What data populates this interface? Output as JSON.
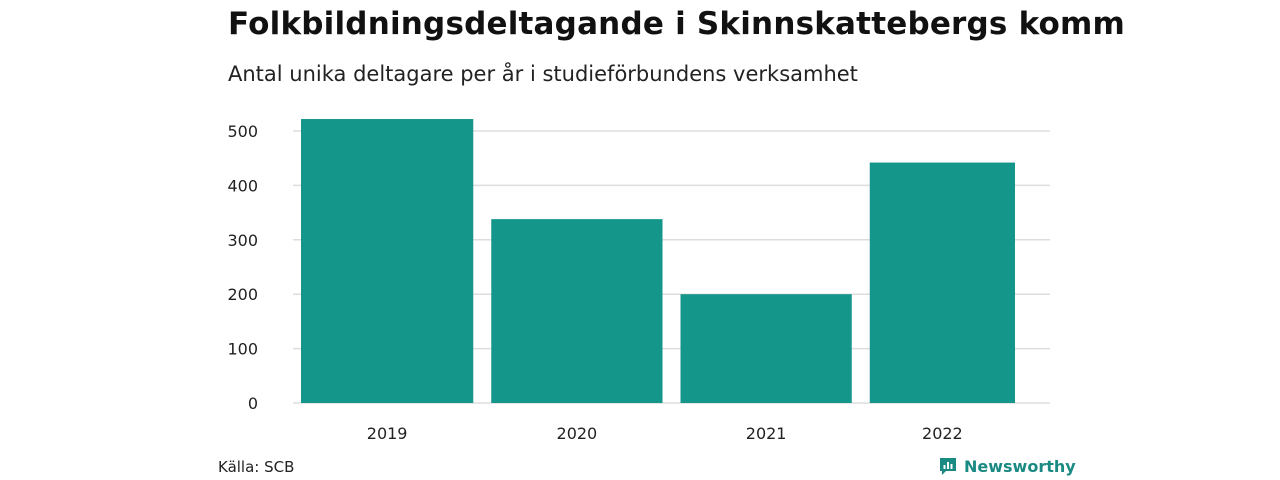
{
  "title": "Folkbildningsdeltagande i Skinnskattebergs komm",
  "subtitle": "Antal unika deltagare per år i studieförbundens verksamhet",
  "source": "Källa: SCB",
  "brand": "Newsworthy",
  "colors": {
    "bar": "#15968a",
    "grid": "#dddddd",
    "brand": "#1a8a82"
  },
  "chart_data": {
    "type": "bar",
    "categories": [
      "2019",
      "2020",
      "2021",
      "2022"
    ],
    "values": [
      522,
      338,
      200,
      442
    ],
    "title": "Folkbildningsdeltagande i Skinnskattebergs komm",
    "subtitle": "Antal unika deltagare per år i studieförbundens verksamhet",
    "xlabel": "",
    "ylabel": "",
    "ylim": [
      0,
      500
    ],
    "yticks": [
      0,
      100,
      200,
      300,
      400,
      500
    ],
    "grid": true
  }
}
